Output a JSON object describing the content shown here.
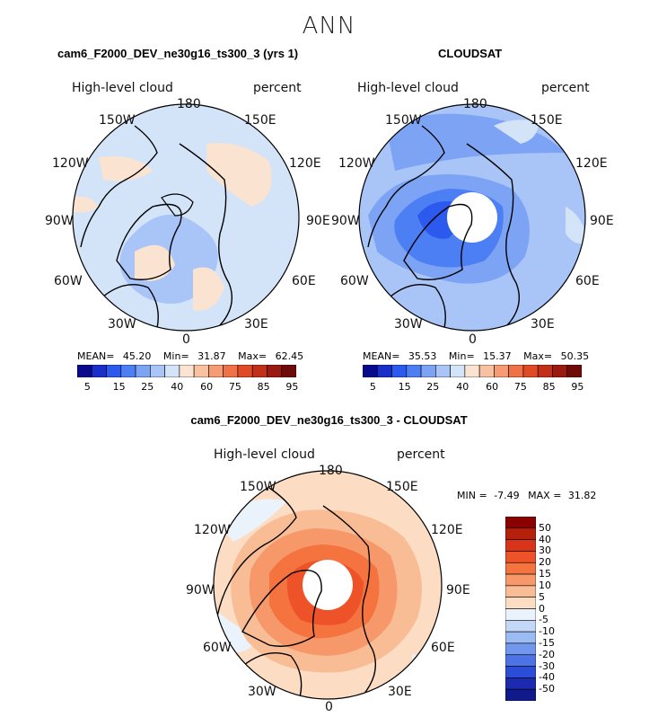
{
  "main_title": "ANN",
  "panels": [
    {
      "title": "cam6_F2000_DEV_ne30g16_ts300_3 (yrs 1)",
      "left_label": "High-level cloud",
      "right_label": "percent",
      "stats": {
        "mean_label": "MEAN=",
        "mean": "45.20",
        "min_label": "Min=",
        "min": "31.87",
        "max_label": "Max=",
        "max": "62.45"
      },
      "colorbar_ticks": [
        "5",
        "15",
        "25",
        "40",
        "60",
        "75",
        "85",
        "95"
      ]
    },
    {
      "title": "CLOUDSAT",
      "left_label": "High-level cloud",
      "right_label": "percent",
      "stats": {
        "mean_label": "MEAN=",
        "mean": "35.53",
        "min_label": "Min=",
        "min": "15.37",
        "max_label": "Max=",
        "max": "50.35"
      },
      "colorbar_ticks": [
        "5",
        "15",
        "25",
        "40",
        "60",
        "75",
        "85",
        "95"
      ]
    },
    {
      "title": "cam6_F2000_DEV_ne30g16_ts300_3 - CLOUDSAT",
      "left_label": "High-level cloud",
      "right_label": "percent",
      "stats": {
        "min_label": "MIN =",
        "min": "-7.49",
        "max_label": "MAX =",
        "max": "31.82"
      },
      "colorbar_ticks": [
        "50",
        "40",
        "30",
        "20",
        "15",
        "10",
        "5",
        "0",
        "-5",
        "-10",
        "-15",
        "-20",
        "-30",
        "-40",
        "-50"
      ]
    }
  ],
  "longitude_labels": {
    "top": "180",
    "bottom": "0",
    "upper_left": "150W",
    "upper_right": "150E",
    "left_upper": "120W",
    "right_upper": "120E",
    "left": "90W",
    "right": "90E",
    "left_lower": "60W",
    "right_lower": "60E",
    "lower_left": "30W",
    "lower_right": "30E"
  },
  "colors": {
    "abs_scale": [
      "#0a0a8c",
      "#1a2fc9",
      "#2c5aee",
      "#4c7ef4",
      "#7da3f5",
      "#a9c4f6",
      "#d3e4f8",
      "#fbe3d1",
      "#f8c1a1",
      "#f59c74",
      "#ef7148",
      "#e04a24",
      "#c2301a",
      "#9a1a12",
      "#6f0a0a"
    ],
    "diff_scale": [
      "#8b0000",
      "#b5200b",
      "#d9341a",
      "#ee5229",
      "#f4733f",
      "#f6986a",
      "#f9bd96",
      "#fcdcc2",
      "#eaf2fc",
      "#c3d8f7",
      "#9dbbf3",
      "#7298ee",
      "#4d74e6",
      "#2c4ed6",
      "#1b2ab0",
      "#101a8a"
    ]
  }
}
